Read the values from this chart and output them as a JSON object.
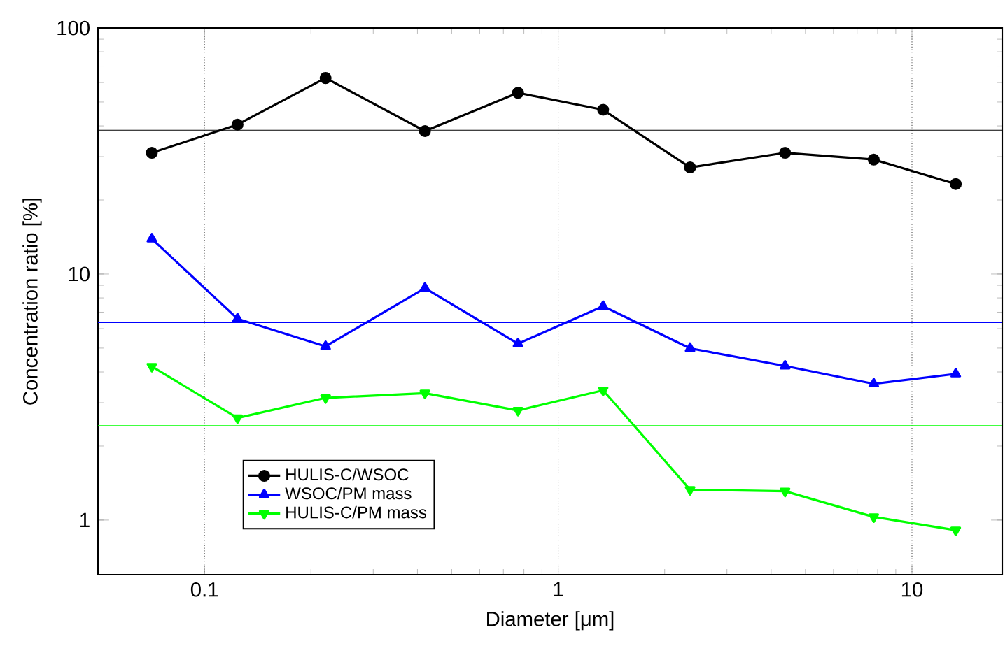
{
  "chart_data": {
    "type": "line",
    "xlabel": "Diameter [μm]",
    "ylabel": "Concentration ratio [%]",
    "log": "xy",
    "xlim": [
      0.05,
      18
    ],
    "ylim": [
      0.6,
      100
    ],
    "xticks": [
      0.1,
      1,
      10
    ],
    "yticks": [
      1,
      10,
      100
    ],
    "grid": "x",
    "legend": "bottom left",
    "line_style": "solid",
    "x": [
      0.071,
      0.124,
      0.22,
      0.42,
      0.77,
      1.34,
      2.36,
      4.38,
      7.8,
      13.3
    ],
    "series": [
      {
        "name": "HULIS-C/WSOC",
        "color": "#000000",
        "marker": "circle",
        "values": [
          31.1,
          40.5,
          62.6,
          38.1,
          54.5,
          46.5,
          27.1,
          31.1,
          29.2,
          23.2
        ]
      },
      {
        "name": "WSOC/PM mass",
        "color": "#0000ff",
        "marker": "triangle",
        "values": [
          13.9,
          6.58,
          5.08,
          8.77,
          5.21,
          7.4,
          4.99,
          4.23,
          3.58,
          3.93
        ]
      },
      {
        "name": "HULIS-C/PM mass",
        "color": "#00ff00",
        "marker": "triangle-down",
        "values": [
          4.21,
          2.6,
          3.14,
          3.28,
          2.79,
          3.37,
          1.33,
          1.31,
          1.03,
          0.91
        ]
      }
    ],
    "ref_lines": [
      {
        "axis": "y",
        "value": 38.4,
        "color": "#000000"
      },
      {
        "axis": "y",
        "value": 6.35,
        "color": "#0000ff"
      },
      {
        "axis": "y",
        "value": 2.42,
        "color": "#00ff00"
      }
    ]
  }
}
